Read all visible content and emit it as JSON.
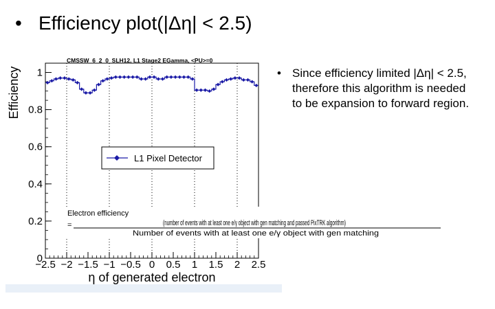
{
  "slide": {
    "bullet": "•",
    "title": "Efficiency plot(|Δη| < 2.5)",
    "note_bullet": "•",
    "note": "Since efficiency limited |Δη| < 2.5, therefore this algorithm is needed to be expansion to forward region."
  },
  "chart_data": {
    "type": "line",
    "header": "CMSSW_6_2_0_SLH12, L1 Stage2 EGamma, <PU>=0",
    "xlabel": "η of generated electron",
    "ylabel": "Efficiency",
    "xlim": [
      -2.5,
      2.5
    ],
    "ylim": [
      0,
      1.05
    ],
    "xticks": [
      "−2.5",
      "−2",
      "−1.5",
      "−1",
      "−0.5",
      "0",
      "0.5",
      "1",
      "1.5",
      "2",
      "2.5"
    ],
    "yticks": [
      "0",
      "0.2",
      "0.4",
      "0.6",
      "0.8",
      "1"
    ],
    "series": [
      {
        "name": "L1 Pixel Detector",
        "color": "#1a1aa6",
        "x": [
          -2.45,
          -2.35,
          -2.25,
          -2.15,
          -2.05,
          -1.95,
          -1.85,
          -1.75,
          -1.65,
          -1.55,
          -1.45,
          -1.35,
          -1.25,
          -1.15,
          -1.05,
          -0.95,
          -0.85,
          -0.75,
          -0.65,
          -0.55,
          -0.45,
          -0.35,
          -0.25,
          -0.15,
          -0.05,
          0.05,
          0.15,
          0.25,
          0.35,
          0.45,
          0.55,
          0.65,
          0.75,
          0.85,
          0.95,
          1.05,
          1.15,
          1.25,
          1.35,
          1.45,
          1.55,
          1.65,
          1.75,
          1.85,
          1.95,
          2.05,
          2.15,
          2.25,
          2.35,
          2.45
        ],
        "y": [
          0.945,
          0.955,
          0.965,
          0.97,
          0.97,
          0.965,
          0.96,
          0.945,
          0.91,
          0.89,
          0.89,
          0.905,
          0.935,
          0.955,
          0.965,
          0.97,
          0.975,
          0.975,
          0.975,
          0.975,
          0.975,
          0.975,
          0.965,
          0.965,
          0.975,
          0.975,
          0.965,
          0.965,
          0.975,
          0.975,
          0.975,
          0.975,
          0.975,
          0.975,
          0.965,
          0.905,
          0.905,
          0.905,
          0.9,
          0.91,
          0.935,
          0.95,
          0.96,
          0.965,
          0.97,
          0.97,
          0.96,
          0.96,
          0.95,
          0.93
        ]
      }
    ],
    "grid": "vertical dotted",
    "legend": "center-left",
    "annotation": {
      "label": "Electron efficiency",
      "eq": "=",
      "numerator": "(number of events with at least one e/γ object with gen matching and passed PixTRK algorithm)",
      "denominator": "Number of events with at least one e/γ object with gen matching"
    }
  }
}
